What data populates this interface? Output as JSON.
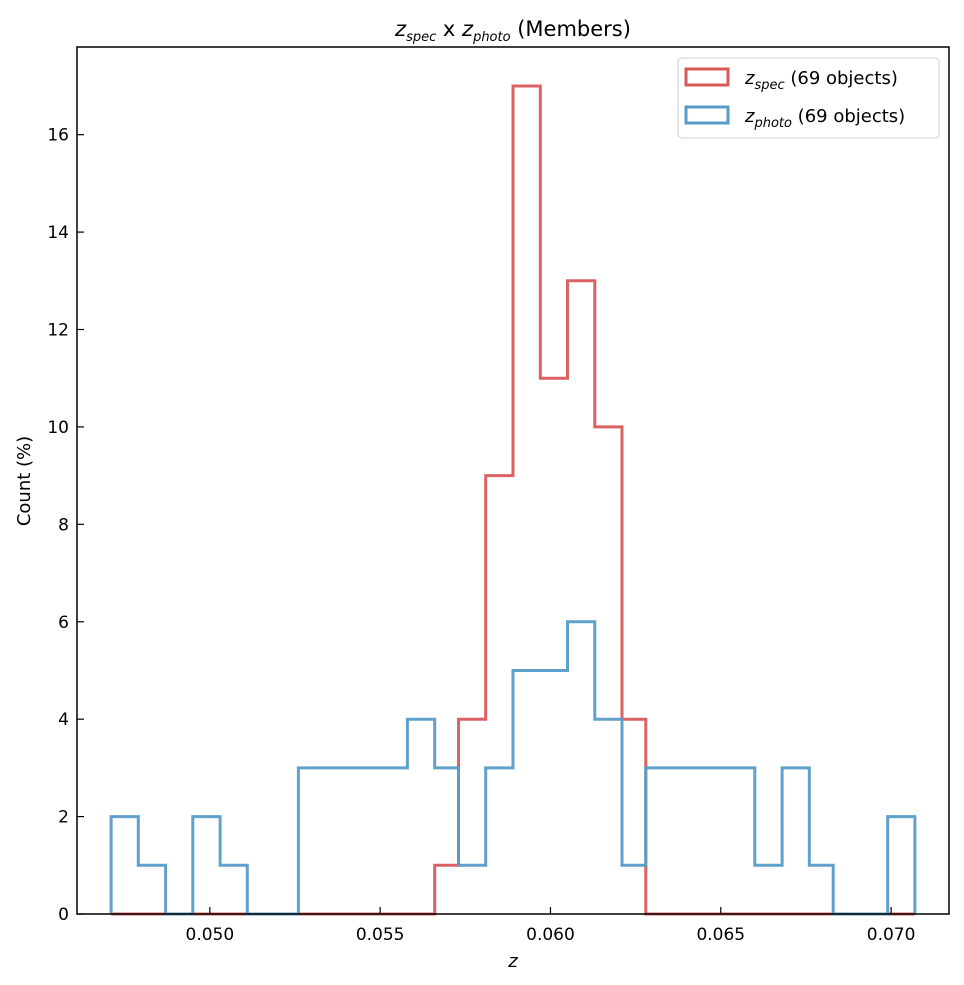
{
  "chart_data": {
    "type": "histogram",
    "title": {
      "main": "z",
      "main_sub": "spec",
      "mid": " x ",
      "second": "z",
      "second_sub": "photo",
      "suffix": " (Members)"
    },
    "xlabel": "z",
    "ylabel": "Count (%)",
    "xlim": [
      0.0461,
      0.0717
    ],
    "ylim": [
      0,
      17.8
    ],
    "xticks": [
      0.05,
      0.055,
      0.06,
      0.065,
      0.07
    ],
    "xtick_labels": [
      "0.050",
      "0.055",
      "0.060",
      "0.065",
      "0.070"
    ],
    "yticks": [
      0,
      2,
      4,
      6,
      8,
      10,
      12,
      14,
      16
    ],
    "ytick_labels": [
      "0",
      "2",
      "4",
      "6",
      "8",
      "10",
      "12",
      "14",
      "16"
    ],
    "series": [
      {
        "name": "z_spec",
        "label_main": "z",
        "label_sub": "spec",
        "label_suffix": " (69 objects)",
        "color": "#d9595a",
        "bin_edges": [
          0.0471,
          0.0479,
          0.0487,
          0.0495,
          0.0503,
          0.0511,
          0.0518,
          0.0526,
          0.0534,
          0.0542,
          0.055,
          0.0558,
          0.0566,
          0.0573,
          0.0581,
          0.0589,
          0.0597,
          0.0605,
          0.0613,
          0.0621,
          0.0628,
          0.0636,
          0.0644,
          0.0652,
          0.066,
          0.0668,
          0.0676,
          0.0683,
          0.0691,
          0.0699,
          0.0707
        ],
        "values": [
          0,
          0,
          0,
          0,
          0,
          0,
          0,
          0,
          0,
          0,
          0,
          0,
          1,
          4,
          9,
          17,
          11,
          13,
          10,
          4,
          0,
          0,
          0,
          0,
          0,
          0,
          0,
          0,
          0,
          0
        ]
      },
      {
        "name": "z_photo",
        "label_main": "z",
        "label_sub": "photo",
        "label_suffix": " (69 objects)",
        "color": "#579cc8",
        "bin_edges": [
          0.0471,
          0.0479,
          0.0487,
          0.0495,
          0.0503,
          0.0511,
          0.0518,
          0.0526,
          0.0534,
          0.0542,
          0.055,
          0.0558,
          0.0566,
          0.0573,
          0.0581,
          0.0589,
          0.0597,
          0.0605,
          0.0613,
          0.0621,
          0.0628,
          0.0636,
          0.0644,
          0.0652,
          0.066,
          0.0668,
          0.0676,
          0.0683,
          0.0691,
          0.0699,
          0.0707
        ],
        "values": [
          2,
          1,
          0,
          2,
          1,
          0,
          0,
          3,
          3,
          3,
          3,
          4,
          3,
          1,
          3,
          5,
          5,
          6,
          4,
          1,
          3,
          3,
          3,
          3,
          1,
          3,
          1,
          0,
          0,
          2
        ]
      }
    ],
    "legend": {
      "placement": "top-right"
    },
    "grid": false
  }
}
